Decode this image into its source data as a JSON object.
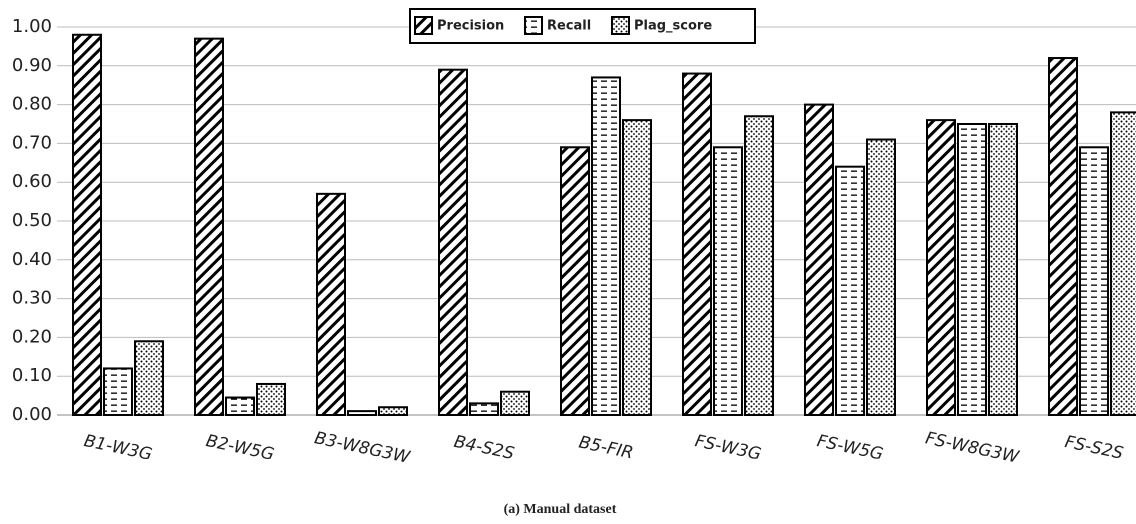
{
  "chart_data": {
    "type": "bar",
    "caption": "(a) Manual dataset",
    "categories": [
      "B1-W3G",
      "B2-W5G",
      "B3-W8G3W",
      "B4-S2S",
      "B5-FIR",
      "FS-W3G",
      "FS-W5G",
      "FS-W8G3W",
      "FS-S2S"
    ],
    "series": [
      {
        "name": "Precision",
        "color": "#000000",
        "pattern": "diagonal",
        "values": [
          0.98,
          0.97,
          0.57,
          0.89,
          0.69,
          0.88,
          0.8,
          0.76,
          0.92
        ]
      },
      {
        "name": "Recall",
        "color": "#000000",
        "pattern": "dashes",
        "values": [
          0.12,
          0.045,
          0.01,
          0.03,
          0.87,
          0.69,
          0.64,
          0.75,
          0.69
        ]
      },
      {
        "name": "Plag_score",
        "color": "#000000",
        "pattern": "dots",
        "values": [
          0.19,
          0.08,
          0.02,
          0.06,
          0.76,
          0.77,
          0.71,
          0.75,
          0.78
        ]
      }
    ],
    "ylim": [
      0,
      1
    ],
    "yticks": [
      {
        "value": 0,
        "label": "0.00"
      },
      {
        "value": 0.1,
        "label": "0.10"
      },
      {
        "value": 0.2,
        "label": "0.20"
      },
      {
        "value": 0.3,
        "label": "0.30"
      },
      {
        "value": 0.4,
        "label": "0.40"
      },
      {
        "value": 0.5,
        "label": "0.50"
      },
      {
        "value": 0.6,
        "label": "0.60"
      },
      {
        "value": 0.7,
        "label": "0.70"
      },
      {
        "value": 0.8,
        "label": "0.80"
      },
      {
        "value": 0.9,
        "label": "0.90"
      },
      {
        "value": 1,
        "label": "1.00"
      }
    ],
    "grid": true,
    "legend": "top"
  }
}
